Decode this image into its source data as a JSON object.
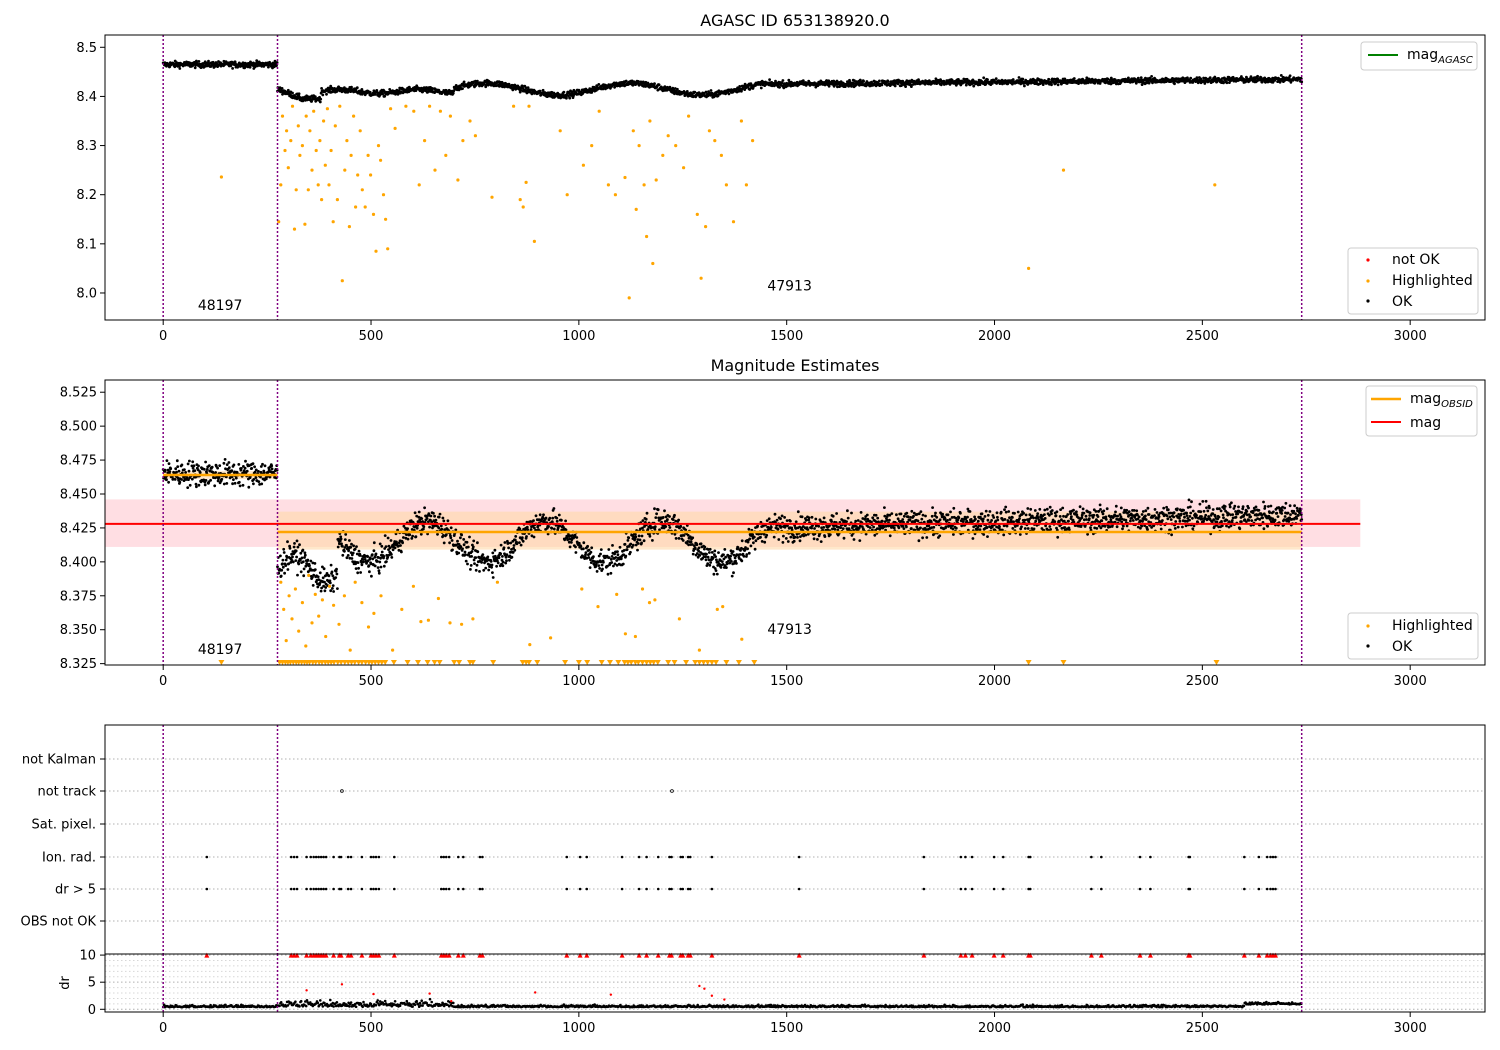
{
  "colors": {
    "ok": "#000000",
    "highlighted": "#ffa500",
    "not_ok": "#ff0000",
    "agasc_line": "#008000",
    "obsid_line": "#ffa500",
    "mag_line": "#ff0000",
    "obs_boundary": "#800080",
    "mag_band": "#ffb6c1",
    "obsid_band": "#ffd8a8"
  },
  "chart_data": [
    {
      "type": "scatter",
      "title": "AGASC ID 653138920.0",
      "xlim": [
        -140,
        3180
      ],
      "ylim": [
        7.945,
        8.525
      ],
      "xticks": [
        0,
        500,
        1000,
        1500,
        2000,
        2500,
        3000
      ],
      "yticks": [
        8.0,
        8.1,
        8.2,
        8.3,
        8.4,
        8.5
      ],
      "obs_boundaries": [
        0,
        275,
        2739
      ],
      "obs_labels": [
        {
          "text": "48197",
          "x": 137,
          "y": 7.965
        },
        {
          "text": "47913",
          "x": 1507,
          "y": 8.005
        }
      ],
      "legend_top": [
        "mag_AGASC"
      ],
      "legend_bottom": [
        "not OK",
        "Highlighted",
        "OK"
      ],
      "highlighted_points": [
        [
          140,
          8.236
        ],
        [
          278,
          8.145
        ],
        [
          283,
          8.22
        ],
        [
          287,
          8.36
        ],
        [
          293,
          8.29
        ],
        [
          297,
          8.33
        ],
        [
          301,
          8.255
        ],
        [
          307,
          8.31
        ],
        [
          311,
          8.38
        ],
        [
          316,
          8.13
        ],
        [
          320,
          8.21
        ],
        [
          325,
          8.34
        ],
        [
          329,
          8.28
        ],
        [
          335,
          8.3
        ],
        [
          341,
          8.14
        ],
        [
          344,
          8.36
        ],
        [
          349,
          8.21
        ],
        [
          353,
          8.33
        ],
        [
          358,
          8.25
        ],
        [
          362,
          8.37
        ],
        [
          368,
          8.29
        ],
        [
          373,
          8.22
        ],
        [
          377,
          8.31
        ],
        [
          381,
          8.19
        ],
        [
          386,
          8.35
        ],
        [
          390,
          8.26
        ],
        [
          395,
          8.375
        ],
        [
          399,
          8.22
        ],
        [
          404,
          8.29
        ],
        [
          409,
          8.145
        ],
        [
          414,
          8.34
        ],
        [
          419,
          8.19
        ],
        [
          425,
          8.38
        ],
        [
          431,
          8.025
        ],
        [
          437,
          8.25
        ],
        [
          442,
          8.31
        ],
        [
          448,
          8.135
        ],
        [
          452,
          8.28
        ],
        [
          458,
          8.36
        ],
        [
          463,
          8.175
        ],
        [
          468,
          8.24
        ],
        [
          474,
          8.33
        ],
        [
          479,
          8.21
        ],
        [
          486,
          8.175
        ],
        [
          493,
          8.28
        ],
        [
          499,
          8.24
        ],
        [
          506,
          8.16
        ],
        [
          512,
          8.085
        ],
        [
          518,
          8.3
        ],
        [
          523,
          8.27
        ],
        [
          530,
          8.2
        ],
        [
          535,
          8.15
        ],
        [
          540,
          8.09
        ],
        [
          547,
          8.375
        ],
        [
          558,
          8.335
        ],
        [
          584,
          8.38
        ],
        [
          603,
          8.37
        ],
        [
          616,
          8.22
        ],
        [
          629,
          8.31
        ],
        [
          641,
          8.38
        ],
        [
          654,
          8.25
        ],
        [
          667,
          8.37
        ],
        [
          680,
          8.28
        ],
        [
          691,
          8.36
        ],
        [
          709,
          8.23
        ],
        [
          721,
          8.31
        ],
        [
          738,
          8.35
        ],
        [
          751,
          8.32
        ],
        [
          791,
          8.195
        ],
        [
          843,
          8.38
        ],
        [
          859,
          8.19
        ],
        [
          866,
          8.175
        ],
        [
          873,
          8.225
        ],
        [
          880,
          8.38
        ],
        [
          893,
          8.105
        ],
        [
          955,
          8.33
        ],
        [
          972,
          8.2
        ],
        [
          1011,
          8.26
        ],
        [
          1031,
          8.3
        ],
        [
          1049,
          8.37
        ],
        [
          1071,
          8.22
        ],
        [
          1088,
          8.2
        ],
        [
          1111,
          8.235
        ],
        [
          1121,
          7.99
        ],
        [
          1131,
          8.33
        ],
        [
          1138,
          8.17
        ],
        [
          1145,
          8.3
        ],
        [
          1157,
          8.22
        ],
        [
          1163,
          8.115
        ],
        [
          1171,
          8.35
        ],
        [
          1178,
          8.06
        ],
        [
          1186,
          8.23
        ],
        [
          1202,
          8.28
        ],
        [
          1215,
          8.32
        ],
        [
          1233,
          8.3
        ],
        [
          1252,
          8.255
        ],
        [
          1264,
          8.36
        ],
        [
          1285,
          8.16
        ],
        [
          1294,
          8.03
        ],
        [
          1305,
          8.135
        ],
        [
          1314,
          8.33
        ],
        [
          1327,
          8.31
        ],
        [
          1343,
          8.28
        ],
        [
          1355,
          8.22
        ],
        [
          1372,
          8.145
        ],
        [
          1391,
          8.35
        ],
        [
          1403,
          8.22
        ],
        [
          1418,
          8.31
        ],
        [
          2082,
          8.05
        ],
        [
          2166,
          8.25
        ],
        [
          2530,
          8.22
        ]
      ]
    },
    {
      "type": "scatter",
      "title": "Magnitude Estimates",
      "xlim": [
        -140,
        3180
      ],
      "ylim": [
        8.324,
        8.534
      ],
      "xticks": [
        0,
        500,
        1000,
        1500,
        2000,
        2500,
        3000
      ],
      "yticks": [
        8.325,
        8.35,
        8.375,
        8.4,
        8.425,
        8.45,
        8.475,
        8.5,
        8.525
      ],
      "obs_boundaries": [
        0,
        275,
        2739
      ],
      "obs_labels": [
        {
          "text": "48197",
          "x": 137,
          "y": 8.332
        },
        {
          "text": "47913",
          "x": 1507,
          "y": 8.347
        }
      ],
      "legend_top": [
        "mag_OBSID",
        "mag"
      ],
      "legend_bottom": [
        "Highlighted",
        "OK"
      ],
      "mag": {
        "value": 8.428,
        "band": [
          8.411,
          8.446
        ],
        "x_range": [
          -140,
          2880
        ]
      },
      "mag_obsid": [
        {
          "x_range": [
            0,
            275
          ],
          "value": 8.464,
          "band": [
            8.461,
            8.467
          ]
        },
        {
          "x_range": [
            275,
            2739
          ],
          "value": 8.422,
          "band": [
            8.409,
            8.437
          ]
        }
      ],
      "highlighted_points": [
        [
          283,
          8.385
        ],
        [
          290,
          8.365
        ],
        [
          296,
          8.342
        ],
        [
          303,
          8.375
        ],
        [
          310,
          8.358
        ],
        [
          318,
          8.38
        ],
        [
          326,
          8.349
        ],
        [
          335,
          8.37
        ],
        [
          343,
          8.338
        ],
        [
          350,
          8.39
        ],
        [
          358,
          8.355
        ],
        [
          366,
          8.376
        ],
        [
          374,
          8.36
        ],
        [
          383,
          8.372
        ],
        [
          391,
          8.345
        ],
        [
          400,
          8.382
        ],
        [
          410,
          8.368
        ],
        [
          423,
          8.354
        ],
        [
          436,
          8.375
        ],
        [
          450,
          8.335
        ],
        [
          462,
          8.385
        ],
        [
          478,
          8.37
        ],
        [
          494,
          8.352
        ],
        [
          507,
          8.362
        ],
        [
          524,
          8.375
        ],
        [
          552,
          8.335
        ],
        [
          574,
          8.365
        ],
        [
          602,
          8.382
        ],
        [
          620,
          8.356
        ],
        [
          638,
          8.357
        ],
        [
          662,
          8.373
        ],
        [
          690,
          8.355
        ],
        [
          718,
          8.354
        ],
        [
          745,
          8.358
        ],
        [
          804,
          8.385
        ],
        [
          882,
          8.339
        ],
        [
          932,
          8.344
        ],
        [
          1007,
          8.38
        ],
        [
          1046,
          8.367
        ],
        [
          1091,
          8.376
        ],
        [
          1112,
          8.347
        ],
        [
          1136,
          8.345
        ],
        [
          1153,
          8.38
        ],
        [
          1170,
          8.37
        ],
        [
          1183,
          8.372
        ],
        [
          1242,
          8.358
        ],
        [
          1290,
          8.335
        ],
        [
          1333,
          8.365
        ],
        [
          1346,
          8.367
        ],
        [
          1392,
          8.343
        ]
      ],
      "highlighted_offscale_x": [
        140,
        280,
        287,
        294,
        300,
        306,
        313,
        320,
        326,
        333,
        340,
        346,
        352,
        360,
        367,
        375,
        382,
        390,
        397,
        404,
        411,
        420,
        428,
        437,
        445,
        453,
        461,
        470,
        478,
        487,
        495,
        502,
        510,
        518,
        526,
        534,
        555,
        588,
        613,
        636,
        653,
        665,
        700,
        712,
        738,
        745,
        794,
        865,
        873,
        880,
        900,
        967,
        1000,
        1020,
        1055,
        1075,
        1095,
        1110,
        1118,
        1126,
        1136,
        1143,
        1153,
        1163,
        1172,
        1180,
        1190,
        1215,
        1230,
        1258,
        1280,
        1290,
        1300,
        1310,
        1320,
        1330,
        1355,
        1385,
        1422,
        2082,
        2166,
        2534
      ]
    },
    {
      "type": "scatter",
      "title": "",
      "xlim": [
        -140,
        3180
      ],
      "categories": [
        "OBS not OK",
        "dr > 5",
        "Ion. rad.",
        "Sat. pixel.",
        "not track",
        "not Kalman"
      ],
      "flag_rows": {
        "dr > 5": [
          105,
          308,
          315,
          322,
          345,
          355,
          362,
          368,
          374,
          380,
          386,
          392,
          410,
          424,
          428,
          445,
          452,
          478,
          500,
          506,
          512,
          519,
          556,
          669,
          675,
          681,
          688,
          710,
          722,
          762,
          768,
          971,
          1003,
          1019,
          1104,
          1145,
          1163,
          1191,
          1218,
          1223,
          1245,
          1250,
          1263,
          1268,
          1320,
          1530,
          1830,
          1919,
          1930,
          1946,
          1999,
          2021,
          2082,
          2086,
          2233,
          2257,
          2350,
          2375,
          2467,
          2470,
          2601,
          2636,
          2656,
          2664,
          2670,
          2676
        ],
        "Ion. rad.": [
          105,
          308,
          315,
          322,
          345,
          355,
          362,
          368,
          374,
          380,
          386,
          392,
          410,
          424,
          428,
          445,
          452,
          478,
          500,
          506,
          512,
          519,
          556,
          669,
          675,
          681,
          688,
          710,
          722,
          762,
          768,
          971,
          1003,
          1019,
          1104,
          1145,
          1163,
          1191,
          1218,
          1223,
          1245,
          1250,
          1263,
          1268,
          1320,
          1530,
          1830,
          1919,
          1930,
          1946,
          1999,
          2021,
          2082,
          2086,
          2233,
          2257,
          2350,
          2375,
          2467,
          2470,
          2601,
          2636,
          2656,
          2664,
          2670,
          2676
        ],
        "not track": [
          430,
          1224
        ]
      },
      "dr_panel": {
        "ylabel": "dr",
        "ylim": [
          -0.5,
          10.2
        ],
        "yticks": [
          0,
          5,
          10
        ],
        "clipped_value": 10,
        "not_ok_points": [
          [
            345,
            3.5
          ],
          [
            430,
            4.6
          ],
          [
            506,
            2.8
          ],
          [
            641,
            2.9
          ],
          [
            693,
            1.5
          ],
          [
            895,
            3.1
          ],
          [
            1077,
            2.7
          ],
          [
            1290,
            4.3
          ],
          [
            1302,
            3.8
          ],
          [
            1320,
            2.5
          ],
          [
            1350,
            1.8
          ]
        ]
      }
    }
  ]
}
